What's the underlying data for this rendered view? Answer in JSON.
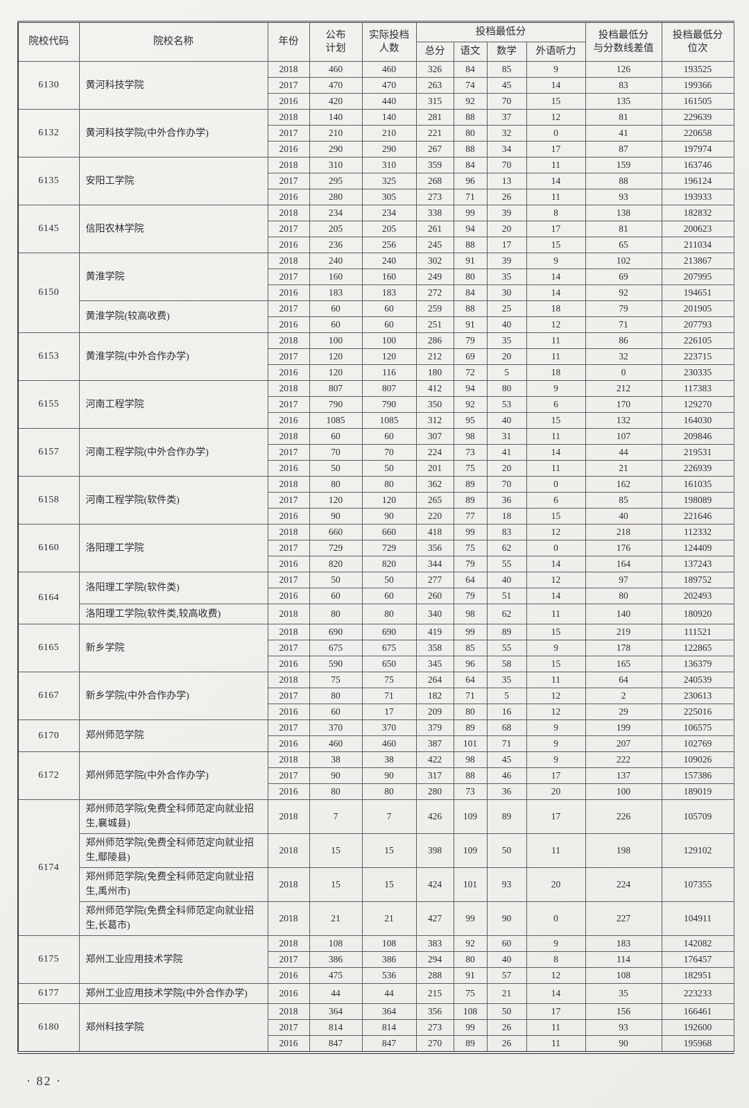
{
  "page": {
    "footer": "· 82 ·"
  },
  "table": {
    "header": {
      "code": "院校代码",
      "name": "院校名称",
      "year": "年份",
      "plan1": "公布",
      "plan2": "计划",
      "actual1": "实际投档",
      "actual2": "人数",
      "min_group": "投档最低分",
      "total": "总分",
      "chinese": "语文",
      "math": "数学",
      "listening": "外语听力",
      "diff1": "投档最低分",
      "diff2": "与分数线差值",
      "rank1": "投档最低分",
      "rank2": "位次"
    },
    "groups": [
      {
        "code": "6130",
        "subgroups": [
          {
            "name": "黄河科技学院",
            "rows": [
              [
                "2018",
                "460",
                "460",
                "326",
                "84",
                "85",
                "9",
                "126",
                "193525"
              ],
              [
                "2017",
                "470",
                "470",
                "263",
                "74",
                "45",
                "14",
                "83",
                "199366"
              ],
              [
                "2016",
                "420",
                "440",
                "315",
                "92",
                "70",
                "15",
                "135",
                "161505"
              ]
            ]
          }
        ]
      },
      {
        "code": "6132",
        "subgroups": [
          {
            "name": "黄河科技学院(中外合作办学)",
            "rows": [
              [
                "2018",
                "140",
                "140",
                "281",
                "88",
                "37",
                "12",
                "81",
                "229639"
              ],
              [
                "2017",
                "210",
                "210",
                "221",
                "80",
                "32",
                "0",
                "41",
                "220658"
              ],
              [
                "2016",
                "290",
                "290",
                "267",
                "88",
                "34",
                "17",
                "87",
                "197974"
              ]
            ]
          }
        ]
      },
      {
        "code": "6135",
        "subgroups": [
          {
            "name": "安阳工学院",
            "rows": [
              [
                "2018",
                "310",
                "310",
                "359",
                "84",
                "70",
                "11",
                "159",
                "163746"
              ],
              [
                "2017",
                "295",
                "325",
                "268",
                "96",
                "13",
                "14",
                "88",
                "196124"
              ],
              [
                "2016",
                "280",
                "305",
                "273",
                "71",
                "26",
                "11",
                "93",
                "193933"
              ]
            ]
          }
        ]
      },
      {
        "code": "6145",
        "subgroups": [
          {
            "name": "信阳农林学院",
            "rows": [
              [
                "2018",
                "234",
                "234",
                "338",
                "99",
                "39",
                "8",
                "138",
                "182832"
              ],
              [
                "2017",
                "205",
                "205",
                "261",
                "94",
                "20",
                "17",
                "81",
                "200623"
              ],
              [
                "2016",
                "236",
                "256",
                "245",
                "88",
                "17",
                "15",
                "65",
                "211034"
              ]
            ]
          }
        ]
      },
      {
        "code": "6150",
        "subgroups": [
          {
            "name": "黄淮学院",
            "rows": [
              [
                "2018",
                "240",
                "240",
                "302",
                "91",
                "39",
                "9",
                "102",
                "213867"
              ],
              [
                "2017",
                "160",
                "160",
                "249",
                "80",
                "35",
                "14",
                "69",
                "207995"
              ],
              [
                "2016",
                "183",
                "183",
                "272",
                "84",
                "30",
                "14",
                "92",
                "194651"
              ]
            ]
          },
          {
            "name": "黄淮学院(较高收费)",
            "rows": [
              [
                "2017",
                "60",
                "60",
                "259",
                "88",
                "25",
                "18",
                "79",
                "201905"
              ],
              [
                "2016",
                "60",
                "60",
                "251",
                "91",
                "40",
                "12",
                "71",
                "207793"
              ]
            ]
          }
        ]
      },
      {
        "code": "6153",
        "subgroups": [
          {
            "name": "黄淮学院(中外合作办学)",
            "rows": [
              [
                "2018",
                "100",
                "100",
                "286",
                "79",
                "35",
                "11",
                "86",
                "226105"
              ],
              [
                "2017",
                "120",
                "120",
                "212",
                "69",
                "20",
                "11",
                "32",
                "223715"
              ],
              [
                "2016",
                "120",
                "116",
                "180",
                "72",
                "5",
                "18",
                "0",
                "230335"
              ]
            ]
          }
        ]
      },
      {
        "code": "6155",
        "subgroups": [
          {
            "name": "河南工程学院",
            "rows": [
              [
                "2018",
                "807",
                "807",
                "412",
                "94",
                "80",
                "9",
                "212",
                "117383"
              ],
              [
                "2017",
                "790",
                "790",
                "350",
                "92",
                "53",
                "6",
                "170",
                "129270"
              ],
              [
                "2016",
                "1085",
                "1085",
                "312",
                "95",
                "40",
                "15",
                "132",
                "164030"
              ]
            ]
          }
        ]
      },
      {
        "code": "6157",
        "subgroups": [
          {
            "name": "河南工程学院(中外合作办学)",
            "rows": [
              [
                "2018",
                "60",
                "60",
                "307",
                "98",
                "31",
                "11",
                "107",
                "209846"
              ],
              [
                "2017",
                "70",
                "70",
                "224",
                "73",
                "41",
                "14",
                "44",
                "219531"
              ],
              [
                "2016",
                "50",
                "50",
                "201",
                "75",
                "20",
                "11",
                "21",
                "226939"
              ]
            ]
          }
        ]
      },
      {
        "code": "6158",
        "subgroups": [
          {
            "name": "河南工程学院(软件类)",
            "rows": [
              [
                "2018",
                "80",
                "80",
                "362",
                "89",
                "70",
                "0",
                "162",
                "161035"
              ],
              [
                "2017",
                "120",
                "120",
                "265",
                "89",
                "36",
                "6",
                "85",
                "198089"
              ],
              [
                "2016",
                "90",
                "90",
                "220",
                "77",
                "18",
                "15",
                "40",
                "221646"
              ]
            ]
          }
        ]
      },
      {
        "code": "6160",
        "subgroups": [
          {
            "name": "洛阳理工学院",
            "rows": [
              [
                "2018",
                "660",
                "660",
                "418",
                "99",
                "83",
                "12",
                "218",
                "112332"
              ],
              [
                "2017",
                "729",
                "729",
                "356",
                "75",
                "62",
                "0",
                "176",
                "124409"
              ],
              [
                "2016",
                "820",
                "820",
                "344",
                "79",
                "55",
                "14",
                "164",
                "137243"
              ]
            ]
          }
        ]
      },
      {
        "code": "6164",
        "subgroups": [
          {
            "name": "洛阳理工学院(软件类)",
            "rows": [
              [
                "2017",
                "50",
                "50",
                "277",
                "64",
                "40",
                "12",
                "97",
                "189752"
              ],
              [
                "2016",
                "60",
                "60",
                "260",
                "79",
                "51",
                "14",
                "80",
                "202493"
              ]
            ]
          },
          {
            "name": "洛阳理工学院(软件类,较高收费)",
            "rows": [
              [
                "2018",
                "80",
                "80",
                "340",
                "98",
                "62",
                "11",
                "140",
                "180920"
              ]
            ]
          }
        ]
      },
      {
        "code": "6165",
        "subgroups": [
          {
            "name": "新乡学院",
            "rows": [
              [
                "2018",
                "690",
                "690",
                "419",
                "99",
                "89",
                "15",
                "219",
                "111521"
              ],
              [
                "2017",
                "675",
                "675",
                "358",
                "85",
                "55",
                "9",
                "178",
                "122865"
              ],
              [
                "2016",
                "590",
                "650",
                "345",
                "96",
                "58",
                "15",
                "165",
                "136379"
              ]
            ]
          }
        ]
      },
      {
        "code": "6167",
        "subgroups": [
          {
            "name": "新乡学院(中外合作办学)",
            "rows": [
              [
                "2018",
                "75",
                "75",
                "264",
                "64",
                "35",
                "11",
                "64",
                "240539"
              ],
              [
                "2017",
                "80",
                "71",
                "182",
                "71",
                "5",
                "12",
                "2",
                "230613"
              ],
              [
                "2016",
                "60",
                "17",
                "209",
                "80",
                "16",
                "12",
                "29",
                "225016"
              ]
            ]
          }
        ]
      },
      {
        "code": "6170",
        "subgroups": [
          {
            "name": "郑州师范学院",
            "rows": [
              [
                "2017",
                "370",
                "370",
                "379",
                "89",
                "68",
                "9",
                "199",
                "106575"
              ],
              [
                "2016",
                "460",
                "460",
                "387",
                "101",
                "71",
                "9",
                "207",
                "102769"
              ]
            ]
          }
        ]
      },
      {
        "code": "6172",
        "subgroups": [
          {
            "name": "郑州师范学院(中外合作办学)",
            "rows": [
              [
                "2018",
                "38",
                "38",
                "422",
                "98",
                "45",
                "9",
                "222",
                "109026"
              ],
              [
                "2017",
                "90",
                "90",
                "317",
                "88",
                "46",
                "17",
                "137",
                "157386"
              ],
              [
                "2016",
                "80",
                "80",
                "280",
                "73",
                "36",
                "20",
                "100",
                "189019"
              ]
            ]
          }
        ]
      },
      {
        "code": "6174",
        "subgroups": [
          {
            "name": "郑州师范学院(免费全科师范定向就业招生,襄城县)",
            "rows": [
              [
                "2018",
                "7",
                "7",
                "426",
                "109",
                "89",
                "17",
                "226",
                "105709"
              ]
            ]
          },
          {
            "name": "郑州师范学院(免费全科师范定向就业招生,鄢陵县)",
            "rows": [
              [
                "2018",
                "15",
                "15",
                "398",
                "109",
                "50",
                "11",
                "198",
                "129102"
              ]
            ]
          },
          {
            "name": "郑州师范学院(免费全科师范定向就业招生,禹州市)",
            "rows": [
              [
                "2018",
                "15",
                "15",
                "424",
                "101",
                "93",
                "20",
                "224",
                "107355"
              ]
            ]
          },
          {
            "name": "郑州师范学院(免费全科师范定向就业招生,长葛市)",
            "rows": [
              [
                "2018",
                "21",
                "21",
                "427",
                "99",
                "90",
                "0",
                "227",
                "104911"
              ]
            ]
          }
        ]
      },
      {
        "code": "6175",
        "subgroups": [
          {
            "name": "郑州工业应用技术学院",
            "rows": [
              [
                "2018",
                "108",
                "108",
                "383",
                "92",
                "60",
                "9",
                "183",
                "142082"
              ],
              [
                "2017",
                "386",
                "386",
                "294",
                "80",
                "40",
                "8",
                "114",
                "176457"
              ],
              [
                "2016",
                "475",
                "536",
                "288",
                "91",
                "57",
                "12",
                "108",
                "182951"
              ]
            ]
          }
        ]
      },
      {
        "code": "6177",
        "subgroups": [
          {
            "name": "郑州工业应用技术学院(中外合作办学)",
            "rows": [
              [
                "2016",
                "44",
                "44",
                "215",
                "75",
                "21",
                "14",
                "35",
                "223233"
              ]
            ]
          }
        ]
      },
      {
        "code": "6180",
        "subgroups": [
          {
            "name": "郑州科技学院",
            "rows": [
              [
                "2018",
                "364",
                "364",
                "356",
                "108",
                "50",
                "17",
                "156",
                "166461"
              ],
              [
                "2017",
                "814",
                "814",
                "273",
                "99",
                "26",
                "11",
                "93",
                "192600"
              ],
              [
                "2016",
                "847",
                "847",
                "270",
                "89",
                "26",
                "11",
                "90",
                "195968"
              ]
            ]
          }
        ]
      }
    ]
  }
}
